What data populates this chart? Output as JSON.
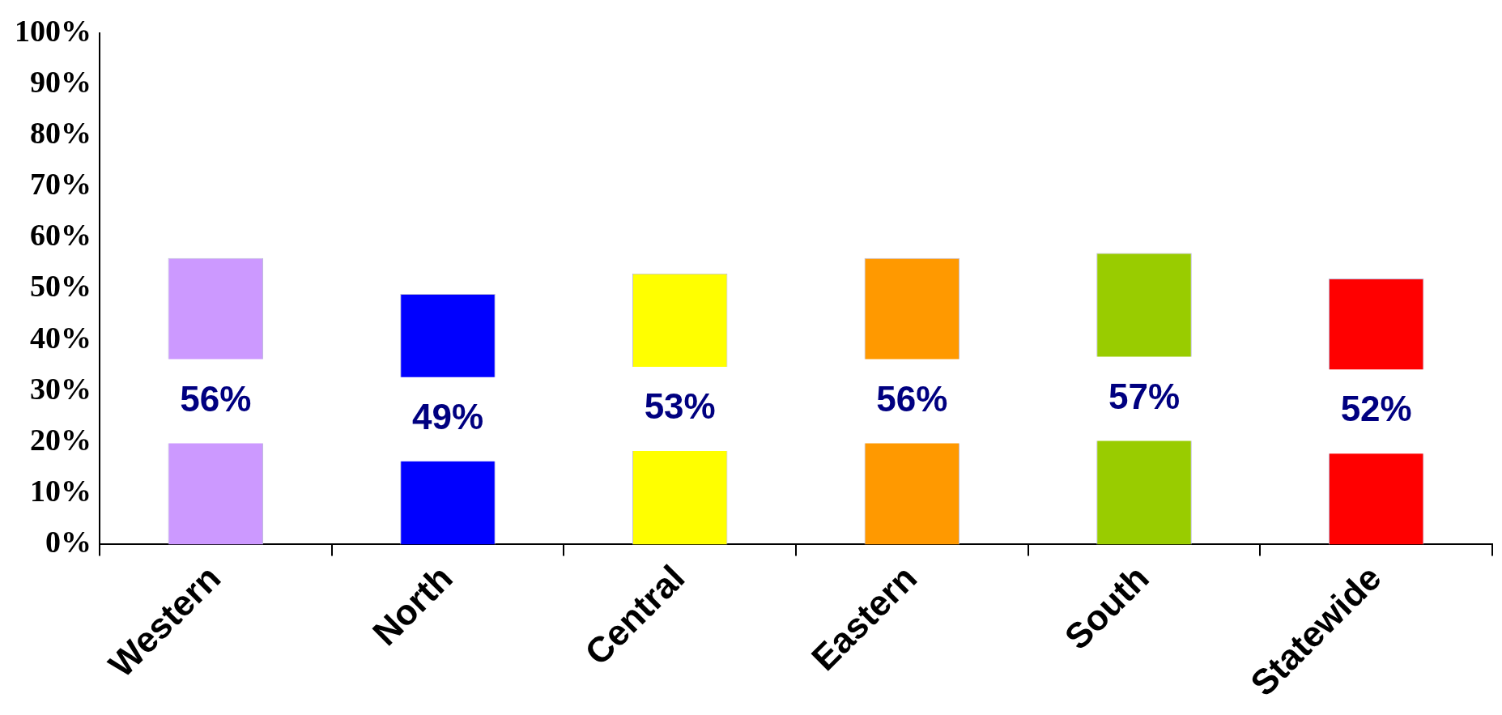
{
  "chart_data": {
    "type": "bar",
    "categories": [
      "Western",
      "North",
      "Central",
      "Eastern",
      "South",
      "Statewide"
    ],
    "values": [
      56,
      49,
      53,
      56,
      57,
      52
    ],
    "colors": [
      "#cc99ff",
      "#0000ff",
      "#ffff00",
      "#ff9900",
      "#99cc00",
      "#ff0000"
    ],
    "value_labels": [
      "56%",
      "49%",
      "53%",
      "56%",
      "57%",
      "52%"
    ],
    "ylim": [
      0,
      100
    ],
    "yticks": [
      {
        "value": 0,
        "label": "0%"
      },
      {
        "value": 10,
        "label": "10%"
      },
      {
        "value": 20,
        "label": "20%"
      },
      {
        "value": 30,
        "label": "30%"
      },
      {
        "value": 40,
        "label": "40%"
      },
      {
        "value": 50,
        "label": "50%"
      },
      {
        "value": 60,
        "label": "60%"
      },
      {
        "value": 70,
        "label": "70%"
      },
      {
        "value": 80,
        "label": "80%"
      },
      {
        "value": 90,
        "label": "90%"
      },
      {
        "value": 100,
        "label": "100%"
      }
    ],
    "grid": false,
    "legend": false
  }
}
